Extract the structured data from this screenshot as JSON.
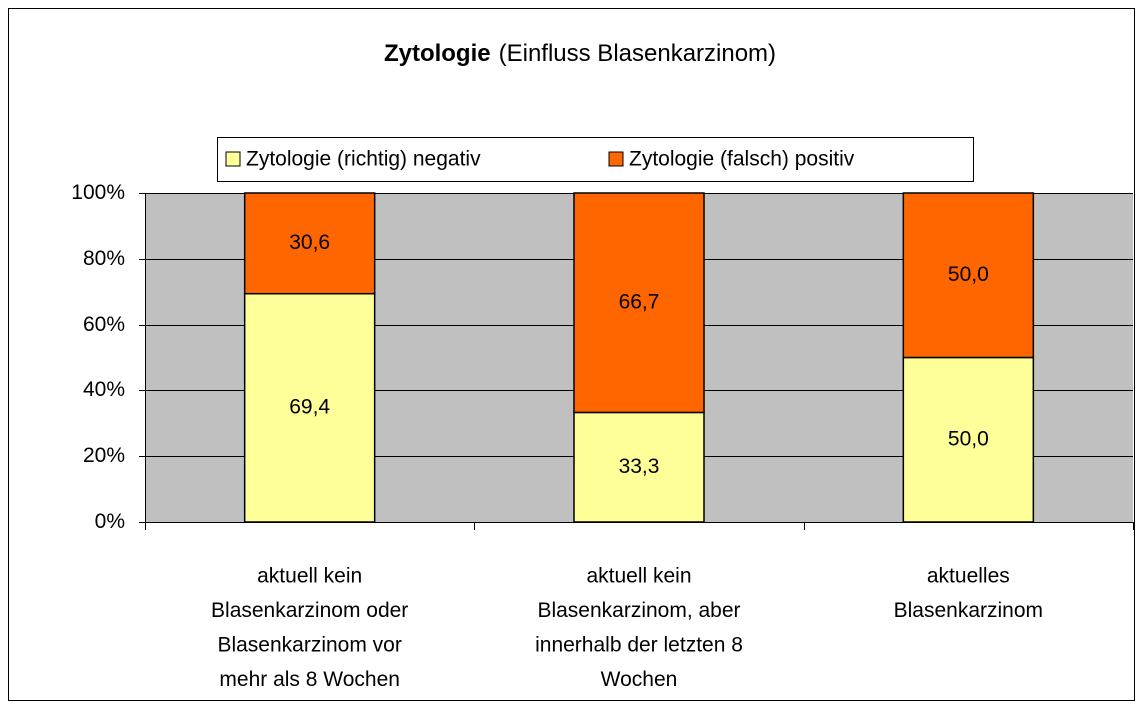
{
  "chart_data": {
    "type": "stacked_bar_100",
    "title": "Zytologie",
    "title_note": "(Einfluss Blasenkarzinom)",
    "categories": [
      [
        "aktuell kein",
        "Blasenkarzinom oder",
        "Blasenkarzinom vor",
        "mehr als 8 Wochen"
      ],
      [
        "aktuell kein",
        "Blasenkarzinom, aber",
        "innerhalb der letzten 8",
        "Wochen"
      ],
      [
        "aktuelles",
        "Blasenkarzinom"
      ]
    ],
    "series": [
      {
        "name": "Zytologie (richtig) negativ",
        "color": "#ffff99",
        "values": [
          69.4,
          33.3,
          50.0
        ],
        "value_labels": [
          "69,4",
          "33,3",
          "50,0"
        ]
      },
      {
        "name": "Zytologie (falsch) positiv",
        "color": "#ff6600",
        "values": [
          30.6,
          66.7,
          50.0
        ],
        "value_labels": [
          "30,6",
          "66,7",
          "50,0"
        ]
      }
    ],
    "ylim": [
      0,
      100
    ],
    "yticks": [
      {
        "value": 0,
        "label": "0%"
      },
      {
        "value": 20,
        "label": "20%"
      },
      {
        "value": 40,
        "label": "40%"
      },
      {
        "value": 60,
        "label": "60%"
      },
      {
        "value": 80,
        "label": "80%"
      },
      {
        "value": 100,
        "label": "100%"
      }
    ],
    "grid": true,
    "legend": "top"
  }
}
